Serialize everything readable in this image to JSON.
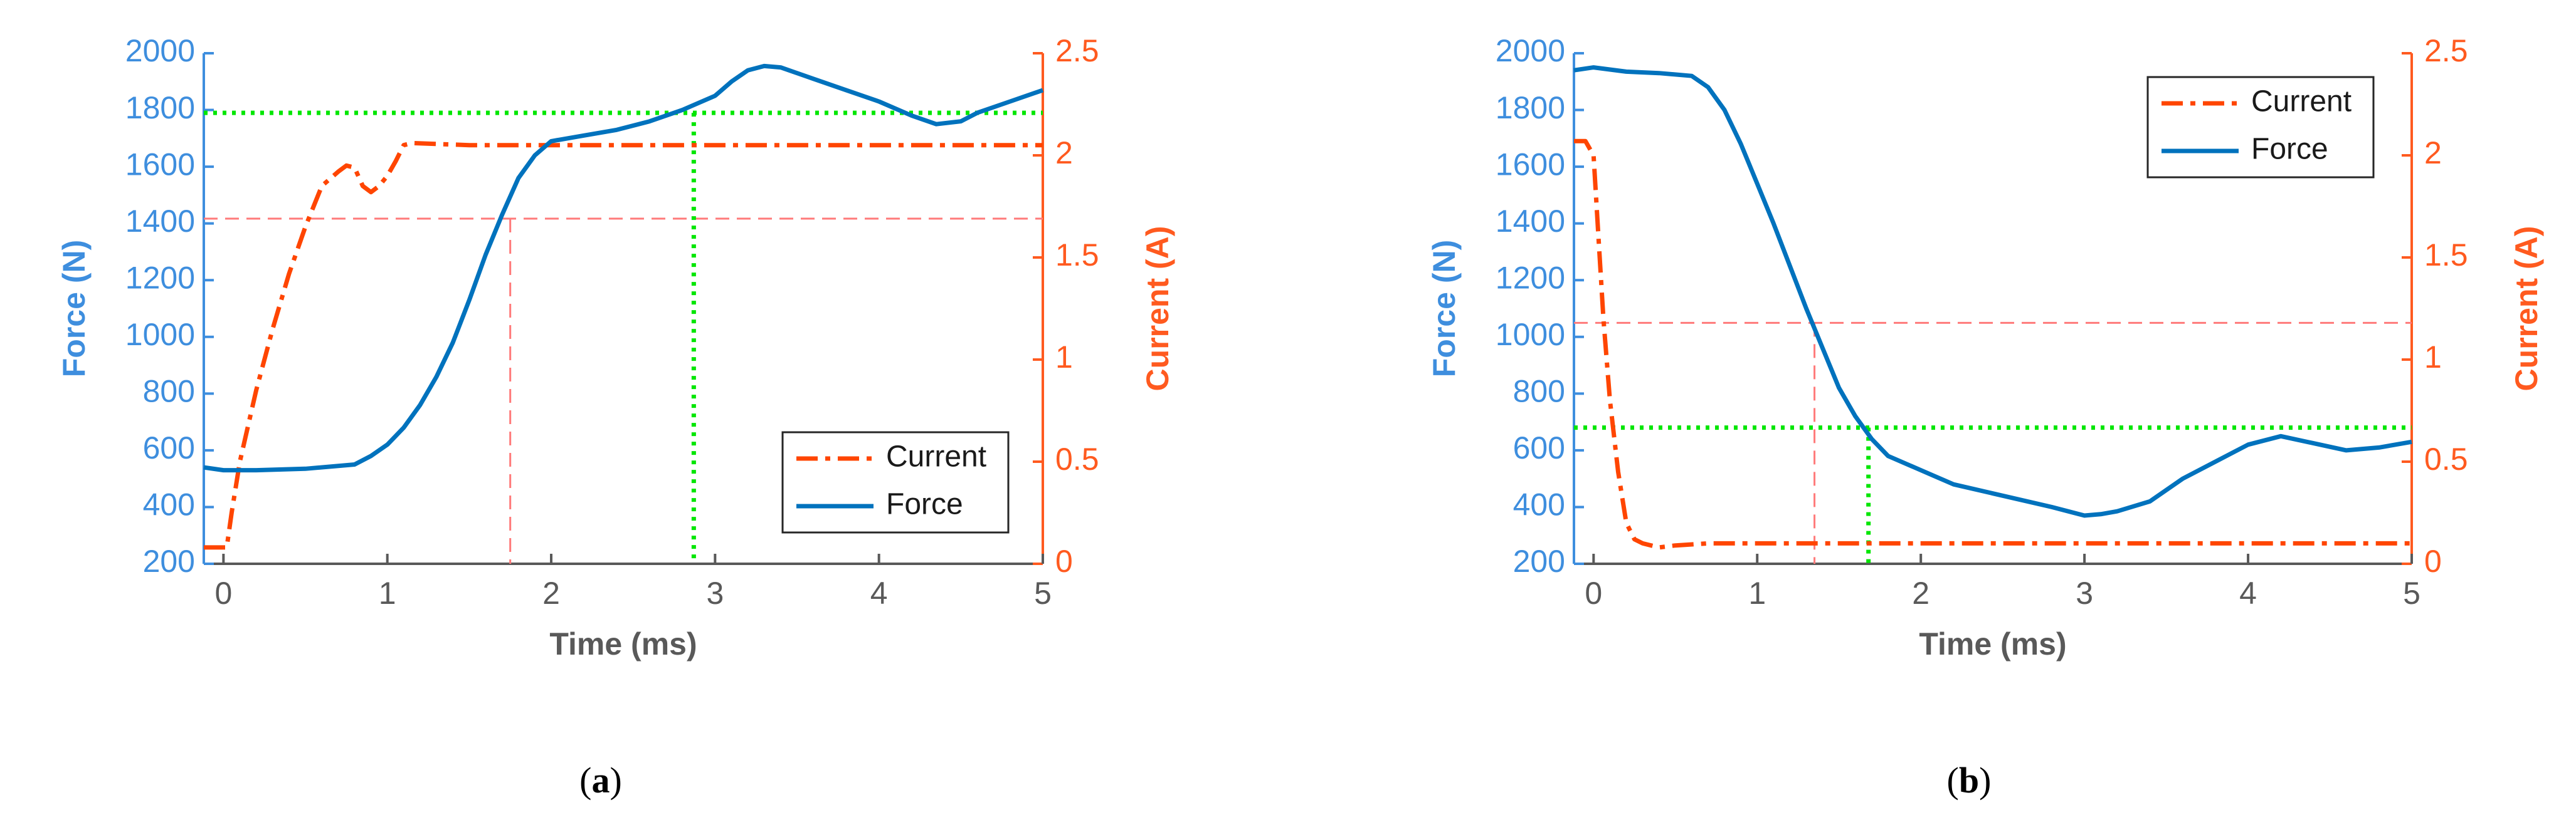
{
  "colors": {
    "force": "#0072BD",
    "current": "#FF4500",
    "left_axis": "#3E8EDE",
    "right_axis": "#FF5A1F",
    "green_ref": "#00E600",
    "red_ref": "#FF7A7A",
    "x_axis": "#595959"
  },
  "panels_label": [
    {
      "open": "(",
      "letter": "a",
      "close": ")"
    },
    {
      "open": "(",
      "letter": "b",
      "close": ")"
    }
  ],
  "chart_data": [
    {
      "type": "line",
      "xlabel": "Time (ms)",
      "ylabel_left": "Force (N)",
      "ylabel_right": "Current (A)",
      "xlim": [
        -0.12,
        5
      ],
      "ylim_left": [
        200,
        2000
      ],
      "ylim_right": [
        0,
        2.5
      ],
      "xticks": [
        "0",
        "1",
        "2",
        "3",
        "4",
        "5"
      ],
      "yticks_left": [
        "200",
        "400",
        "600",
        "800",
        "1000",
        "1200",
        "1400",
        "1600",
        "1800",
        "2000"
      ],
      "yticks_right": [
        "0",
        "0.5",
        "1",
        "1.5",
        "2",
        "2.5"
      ],
      "legend": {
        "position": "bottom-right",
        "entries": [
          "Current",
          "Force"
        ]
      },
      "grid": false,
      "ref_lines": {
        "green_horizontal_force": 1790,
        "green_vertical_time": 2.87,
        "red_horizontal_current": 1.69,
        "red_vertical_time": 1.75
      },
      "series": [
        {
          "name": "Current",
          "axis": "right",
          "style": "dash-dot",
          "x": [
            -0.12,
            0.02,
            0.05,
            0.1,
            0.2,
            0.3,
            0.4,
            0.5,
            0.6,
            0.7,
            0.75,
            0.8,
            0.85,
            0.9,
            0.95,
            1.0,
            1.05,
            1.1,
            1.15,
            1.5,
            2.0,
            2.5,
            3.0,
            3.5,
            4.0,
            4.5,
            5.0
          ],
          "y": [
            0.08,
            0.08,
            0.25,
            0.5,
            0.85,
            1.15,
            1.42,
            1.65,
            1.85,
            1.92,
            1.95,
            1.94,
            1.85,
            1.82,
            1.85,
            1.9,
            1.97,
            2.05,
            2.06,
            2.05,
            2.05,
            2.05,
            2.05,
            2.05,
            2.05,
            2.05,
            2.05
          ]
        },
        {
          "name": "Force",
          "axis": "left",
          "style": "solid",
          "x": [
            -0.12,
            0.0,
            0.2,
            0.5,
            0.8,
            0.9,
            1.0,
            1.1,
            1.2,
            1.3,
            1.4,
            1.5,
            1.6,
            1.7,
            1.8,
            1.9,
            2.0,
            2.2,
            2.4,
            2.6,
            2.8,
            3.0,
            3.1,
            3.2,
            3.3,
            3.4,
            3.6,
            3.8,
            4.0,
            4.2,
            4.35,
            4.5,
            4.6,
            4.8,
            5.0
          ],
          "y": [
            540,
            530,
            530,
            535,
            550,
            580,
            620,
            680,
            760,
            860,
            980,
            1130,
            1290,
            1430,
            1560,
            1640,
            1690,
            1710,
            1730,
            1760,
            1800,
            1850,
            1900,
            1940,
            1955,
            1950,
            1910,
            1870,
            1830,
            1780,
            1750,
            1760,
            1790,
            1830,
            1870
          ]
        }
      ]
    },
    {
      "type": "line",
      "xlabel": "Time (ms)",
      "ylabel_left": "Force (N)",
      "ylabel_right": "Current (A)",
      "xlim": [
        -0.12,
        5
      ],
      "ylim_left": [
        200,
        2000
      ],
      "ylim_right": [
        0,
        2.5
      ],
      "xticks": [
        "0",
        "1",
        "2",
        "3",
        "4",
        "5"
      ],
      "yticks_left": [
        "200",
        "400",
        "600",
        "800",
        "1000",
        "1200",
        "1400",
        "1600",
        "1800",
        "2000"
      ],
      "yticks_right": [
        "0",
        "0.5",
        "1",
        "1.5",
        "2",
        "2.5"
      ],
      "legend": {
        "position": "top-right",
        "entries": [
          "Current",
          "Force"
        ]
      },
      "grid": false,
      "ref_lines": {
        "green_horizontal_force": 680,
        "green_vertical_time": 1.68,
        "red_horizontal_current": 1.18,
        "red_vertical_time": 1.35
      },
      "series": [
        {
          "name": "Current",
          "axis": "right",
          "style": "dash-dot",
          "x": [
            -0.12,
            -0.05,
            0.0,
            0.03,
            0.06,
            0.1,
            0.15,
            0.2,
            0.25,
            0.3,
            0.4,
            0.5,
            0.7,
            1.0,
            2.0,
            3.0,
            4.0,
            5.0
          ],
          "y": [
            2.07,
            2.07,
            2.0,
            1.6,
            1.2,
            0.8,
            0.45,
            0.2,
            0.12,
            0.1,
            0.08,
            0.09,
            0.1,
            0.1,
            0.1,
            0.1,
            0.1,
            0.1
          ]
        },
        {
          "name": "Force",
          "axis": "left",
          "style": "solid",
          "x": [
            -0.12,
            0.0,
            0.2,
            0.4,
            0.6,
            0.7,
            0.8,
            0.9,
            1.0,
            1.1,
            1.2,
            1.3,
            1.4,
            1.5,
            1.6,
            1.7,
            1.8,
            2.0,
            2.2,
            2.5,
            2.8,
            3.0,
            3.1,
            3.2,
            3.4,
            3.6,
            3.8,
            4.0,
            4.2,
            4.4,
            4.6,
            4.8,
            5.0
          ],
          "y": [
            1940,
            1950,
            1935,
            1930,
            1920,
            1880,
            1800,
            1680,
            1540,
            1400,
            1250,
            1100,
            960,
            820,
            720,
            640,
            580,
            530,
            480,
            440,
            400,
            370,
            375,
            385,
            420,
            500,
            560,
            620,
            650,
            625,
            600,
            610,
            630
          ]
        }
      ]
    }
  ]
}
